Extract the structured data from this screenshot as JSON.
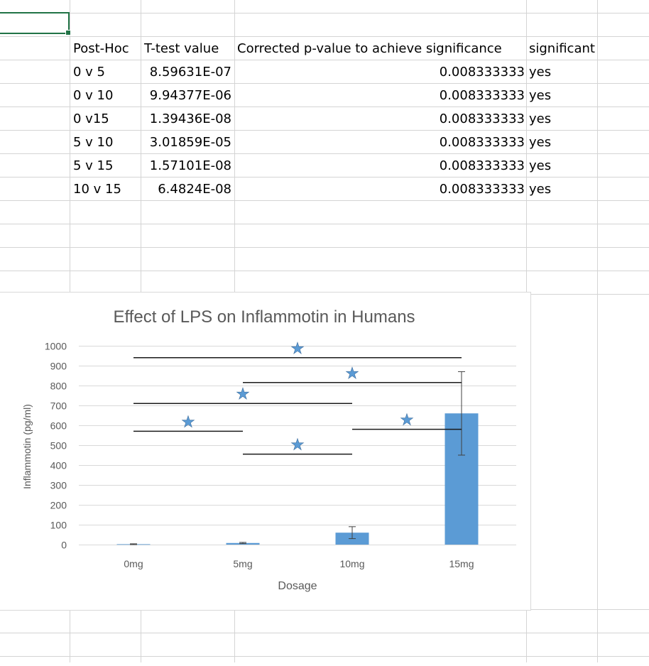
{
  "table": {
    "headers": [
      "Post-Hoc",
      "T-test value",
      "Corrected p-value to achieve significance",
      "significant"
    ],
    "rows": [
      [
        "0 v 5",
        "8.59631E-07",
        "0.008333333",
        "yes"
      ],
      [
        "0 v 10",
        "9.94377E-06",
        "0.008333333",
        "yes"
      ],
      [
        "0 v15",
        "1.39436E-08",
        "0.008333333",
        "yes"
      ],
      [
        "5 v 10",
        "3.01859E-05",
        "0.008333333",
        "yes"
      ],
      [
        "5 v 15",
        "1.57101E-08",
        "0.008333333",
        "yes"
      ],
      [
        "10 v 15",
        "6.4824E-08",
        "0.008333333",
        "yes"
      ]
    ]
  },
  "chart_data": {
    "type": "bar",
    "title": "Effect of LPS on Inflammotin in Humans",
    "xlabel": "Dosage",
    "ylabel": "Inflammotin (pg/ml)",
    "categories": [
      "0mg",
      "5mg",
      "10mg",
      "15mg"
    ],
    "values": [
      2,
      8,
      60,
      660
    ],
    "error": [
      2,
      3,
      30,
      210
    ],
    "ylim": [
      0,
      1000
    ],
    "yticks": [
      0,
      100,
      200,
      300,
      400,
      500,
      600,
      700,
      800,
      900,
      1000
    ],
    "grid": true,
    "bar_color": "#5b9bd5",
    "significance_marker": "★",
    "significance_brackets": [
      {
        "from": "0mg",
        "to": "5mg",
        "y": 570
      },
      {
        "from": "5mg",
        "to": "10mg",
        "y": 455
      },
      {
        "from": "0mg",
        "to": "10mg",
        "y": 710
      },
      {
        "from": "10mg",
        "to": "15mg",
        "y": 580
      },
      {
        "from": "5mg",
        "to": "15mg",
        "y": 815
      },
      {
        "from": "0mg",
        "to": "15mg",
        "y": 940
      }
    ]
  }
}
